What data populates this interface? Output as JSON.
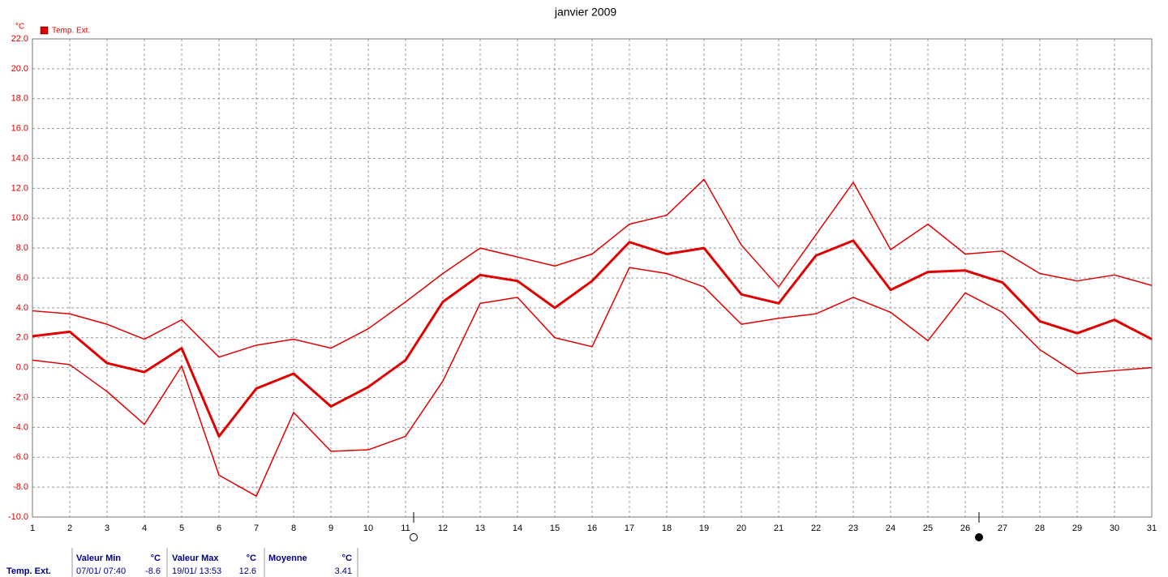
{
  "chart_data": {
    "type": "line",
    "title": "janvier 2009",
    "y_unit": "°C",
    "x": [
      1,
      2,
      3,
      4,
      5,
      6,
      7,
      8,
      9,
      10,
      11,
      12,
      13,
      14,
      15,
      16,
      17,
      18,
      19,
      20,
      21,
      22,
      23,
      24,
      25,
      26,
      27,
      28,
      29,
      30,
      31
    ],
    "xlim": [
      1,
      31
    ],
    "xticks": [
      1,
      2,
      3,
      4,
      5,
      6,
      7,
      8,
      9,
      10,
      11,
      12,
      13,
      14,
      15,
      16,
      17,
      18,
      19,
      20,
      21,
      22,
      23,
      24,
      25,
      26,
      27,
      28,
      29,
      30,
      31
    ],
    "ylim": [
      -10,
      22
    ],
    "yticks": [
      {
        "value": 22,
        "label": "22.0"
      },
      {
        "value": 20,
        "label": "20.0"
      },
      {
        "value": 18,
        "label": "18.0"
      },
      {
        "value": 16,
        "label": "16.0"
      },
      {
        "value": 14,
        "label": "14.0"
      },
      {
        "value": 12,
        "label": "12.0"
      },
      {
        "value": 10,
        "label": "10.0"
      },
      {
        "value": 8,
        "label": "8.0"
      },
      {
        "value": 6,
        "label": "6.0"
      },
      {
        "value": 4,
        "label": "4.0"
      },
      {
        "value": 2,
        "label": "2.0"
      },
      {
        "value": 0,
        "label": "0.0"
      },
      {
        "value": -2,
        "label": "-2.0"
      },
      {
        "value": -4,
        "label": "-4.0"
      },
      {
        "value": -6,
        "label": "-6.0"
      },
      {
        "value": -8,
        "label": "-8.0"
      },
      {
        "value": -10,
        "label": "-10.0"
      }
    ],
    "grid": true,
    "series": [
      {
        "name": "Temp. Ext.",
        "color": "#e00000",
        "width": 3,
        "values": [
          2.1,
          2.4,
          0.3,
          -0.3,
          1.3,
          -4.6,
          -1.4,
          -0.4,
          -2.6,
          -1.3,
          0.5,
          4.4,
          6.2,
          5.8,
          4.0,
          5.8,
          8.4,
          7.6,
          8.0,
          4.9,
          4.3,
          7.5,
          8.5,
          5.2,
          6.4,
          6.5,
          5.7,
          3.1,
          2.3,
          3.2,
          1.9
        ]
      },
      {
        "color": "#e00000",
        "width": 1.5,
        "values": [
          3.8,
          3.6,
          2.9,
          1.9,
          3.2,
          0.7,
          1.5,
          1.9,
          1.3,
          2.6,
          4.4,
          6.3,
          8.0,
          7.4,
          6.8,
          7.6,
          9.6,
          10.2,
          12.6,
          8.2,
          5.4,
          8.9,
          12.4,
          7.9,
          9.6,
          7.6,
          7.8,
          6.3,
          5.8,
          6.2,
          5.5
        ]
      },
      {
        "color": "#e00000",
        "width": 1.5,
        "values": [
          0.5,
          0.2,
          -1.6,
          -3.8,
          0.1,
          -7.2,
          -8.6,
          -3.0,
          -5.6,
          -5.5,
          -4.6,
          -0.9,
          4.3,
          4.7,
          2.0,
          1.4,
          6.7,
          6.3,
          5.4,
          2.9,
          3.3,
          3.6,
          4.7,
          3.7,
          1.8,
          5.0,
          3.7,
          1.2,
          -0.4,
          -0.2,
          0.0
        ]
      }
    ]
  },
  "stats": {
    "label": "Temp. Ext.",
    "min": {
      "header": "Valeur Min",
      "unit": "°C",
      "date": "07/01/ 07:40",
      "value": "-8.6"
    },
    "max": {
      "header": "Valeur Max",
      "unit": "°C",
      "date": "19/01/ 13:53",
      "value": "12.6"
    },
    "mean": {
      "header": "Moyenne",
      "unit": "°C",
      "value": "3.41"
    }
  }
}
